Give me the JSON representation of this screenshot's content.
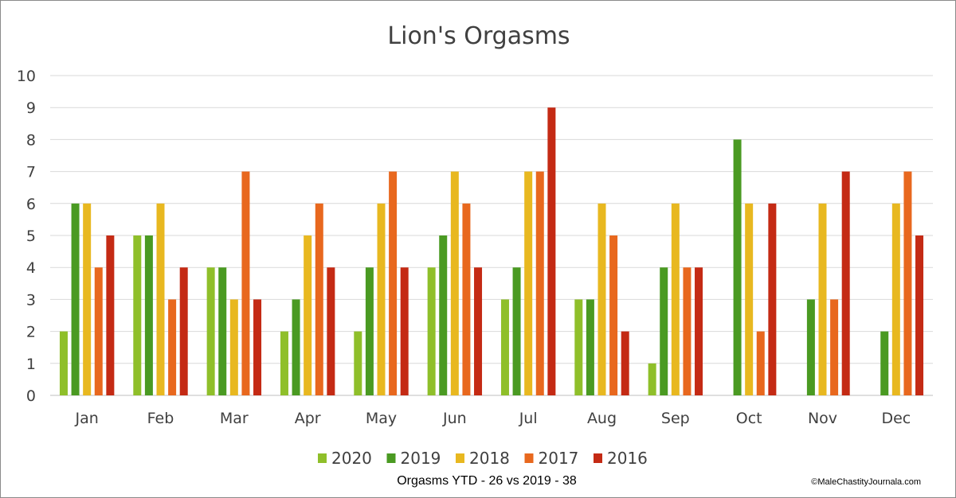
{
  "chart_data": {
    "type": "bar",
    "title": "Lion's Orgasms",
    "categories": [
      "Jan",
      "Feb",
      "Mar",
      "Apr",
      "May",
      "Jun",
      "Jul",
      "Aug",
      "Sep",
      "Oct",
      "Nov",
      "Dec"
    ],
    "series": [
      {
        "name": "2020",
        "color": "#8fbf2a",
        "values": [
          2,
          5,
          4,
          2,
          2,
          4,
          3,
          3,
          1,
          0,
          0,
          0
        ]
      },
      {
        "name": "2019",
        "color": "#4a9a22",
        "values": [
          6,
          5,
          4,
          3,
          4,
          5,
          4,
          3,
          4,
          8,
          3,
          2
        ]
      },
      {
        "name": "2018",
        "color": "#e8b820",
        "values": [
          6,
          6,
          3,
          5,
          6,
          7,
          7,
          6,
          6,
          6,
          6,
          6
        ]
      },
      {
        "name": "2017",
        "color": "#e8681e",
        "values": [
          4,
          3,
          7,
          6,
          7,
          6,
          7,
          5,
          4,
          2,
          3,
          7
        ]
      },
      {
        "name": "2016",
        "color": "#c42a14",
        "values": [
          5,
          4,
          3,
          4,
          4,
          4,
          9,
          2,
          4,
          6,
          7,
          5
        ]
      }
    ],
    "ylim": [
      0,
      10
    ],
    "yticks": [
      "0",
      "1",
      "2",
      "3",
      "4",
      "5",
      "6",
      "7",
      "8",
      "9",
      "10"
    ],
    "xlabel": "",
    "ylabel": "",
    "grid": true,
    "legend_position": "bottom"
  },
  "caption": "Orgasms YTD - 26 vs 2019 - 38",
  "copyright": "©MaleChastityJournala.com"
}
